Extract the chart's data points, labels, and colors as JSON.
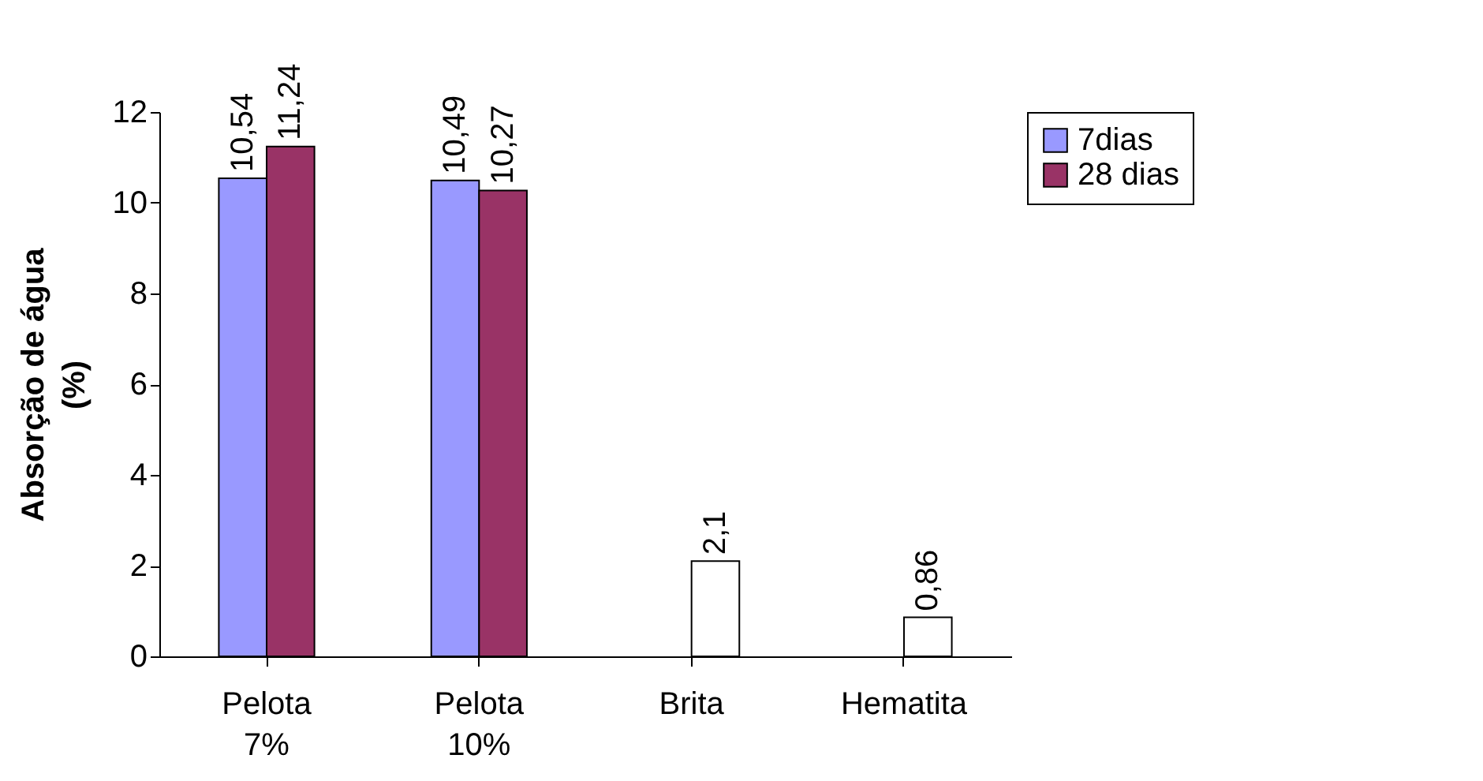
{
  "chart_data": {
    "type": "bar",
    "ylabel": "Absorção de água (%)",
    "categories": [
      "Pelota 7%",
      "Pelota 10%",
      "Brita",
      "Hematita"
    ],
    "series": [
      {
        "name": "7dias",
        "color": "#9999ff",
        "values": [
          10.54,
          10.49,
          null,
          null
        ],
        "value_labels": [
          "10,54",
          "10,49",
          null,
          null
        ]
      },
      {
        "name": "28 dias",
        "color": "#993366",
        "colors": [
          "#993366",
          "#993366",
          "#ffffff",
          "#ffffff"
        ],
        "values": [
          11.24,
          10.27,
          2.1,
          0.86
        ],
        "value_labels": [
          "11,24",
          "10,27",
          "2,1",
          "0,86"
        ]
      }
    ],
    "ylim": [
      0,
      12
    ],
    "yticks": [
      0,
      2,
      4,
      6,
      8,
      10,
      12
    ],
    "grid": false,
    "legend": "right"
  }
}
